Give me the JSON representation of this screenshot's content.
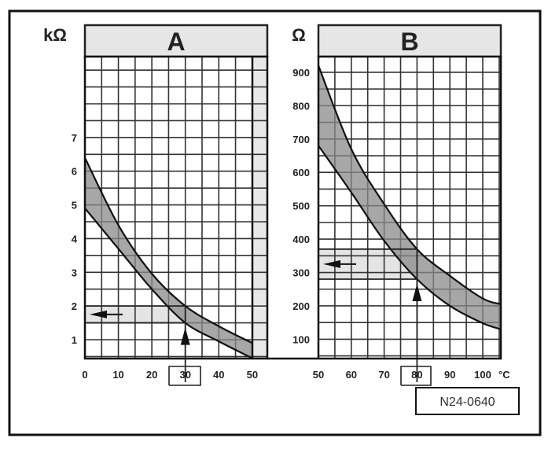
{
  "figure_id": "N24-0640",
  "chart_data": [
    {
      "type": "area",
      "panel_label": "A",
      "ylabel": "kΩ",
      "xlabel": "",
      "x_ticks": [
        0,
        10,
        20,
        30,
        40,
        50
      ],
      "y_ticks": [
        1,
        2,
        3,
        4,
        5,
        6,
        7
      ],
      "xlim": [
        0,
        54.5
      ],
      "ylim": [
        0.44,
        9.4
      ],
      "grid": true,
      "highlighted_x": 30,
      "highlighted_range": [
        1.5,
        2.0
      ],
      "series": [
        {
          "name": "upper",
          "points": [
            [
              0,
              6.4
            ],
            [
              10,
              4.4
            ],
            [
              20,
              2.96
            ],
            [
              30,
              2.0
            ],
            [
              40,
              1.4
            ],
            [
              50,
              0.9
            ]
          ]
        },
        {
          "name": "lower",
          "points": [
            [
              0,
              4.9
            ],
            [
              10,
              3.7
            ],
            [
              20,
              2.5
            ],
            [
              30,
              1.5
            ],
            [
              40,
              0.95
            ],
            [
              50,
              0.45
            ]
          ]
        }
      ]
    },
    {
      "type": "area",
      "panel_label": "B",
      "ylabel": "Ω",
      "xlabel": "°C",
      "x_ticks": [
        50,
        60,
        70,
        80,
        90,
        100
      ],
      "y_ticks": [
        100,
        200,
        300,
        400,
        500,
        600,
        700,
        800,
        900
      ],
      "xlim": [
        50,
        105.5
      ],
      "ylim": [
        42,
        947
      ],
      "grid": true,
      "highlighted_x": 80,
      "highlighted_range": [
        280,
        370
      ],
      "series": [
        {
          "name": "upper",
          "points": [
            [
              50,
              920
            ],
            [
              60,
              670
            ],
            [
              70,
              505
            ],
            [
              80,
              370
            ],
            [
              90,
              290
            ],
            [
              100,
              222
            ],
            [
              105.5,
              205
            ]
          ]
        },
        {
          "name": "lower",
          "points": [
            [
              50,
              680
            ],
            [
              60,
              540
            ],
            [
              70,
              395
            ],
            [
              80,
              280
            ],
            [
              90,
              200
            ],
            [
              100,
              148
            ],
            [
              105.5,
              130
            ]
          ]
        }
      ]
    }
  ]
}
